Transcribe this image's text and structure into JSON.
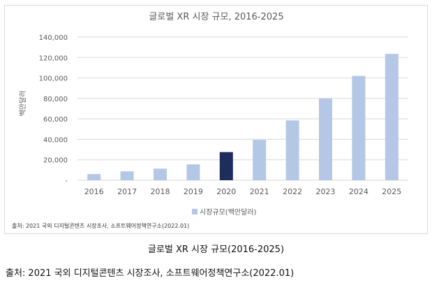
{
  "caption": "글로벌 XR 시장 규모(2016-2025)",
  "source": "출처:  2021 국외 디지털콘텐츠 시장조사, 소프트웨어정책연구소(2022.01)",
  "chart_data": {
    "type": "bar",
    "title": "글로벌 XR 시장 규모, 2016-2025",
    "ylabel": "백만달러",
    "xlabel": "",
    "categories": [
      "2016",
      "2017",
      "2018",
      "2019",
      "2020",
      "2021",
      "2022",
      "2023",
      "2024",
      "2025"
    ],
    "series": [
      {
        "name": "시장규모(백만달러)",
        "values": [
          6000,
          8700,
          11300,
          15500,
          27500,
          39500,
          58500,
          80000,
          102000,
          123500
        ]
      }
    ],
    "highlight_category": "2020",
    "ylim": [
      0,
      140000
    ],
    "yticks": [
      "-",
      "20,000",
      "40,000",
      "60,000",
      "80,000",
      "100,000",
      "120,000",
      "140,000"
    ],
    "grid": true,
    "legend_position": "bottom",
    "source_note": "출처: 2021 국외 디지털콘텐츠 시장조사, 소프트웨어정책연구소(2022.01)",
    "colors": {
      "bar": "#b4c7e7",
      "highlight": "#1f2d5c",
      "grid": "#d9d9d9",
      "text": "#595959"
    }
  }
}
